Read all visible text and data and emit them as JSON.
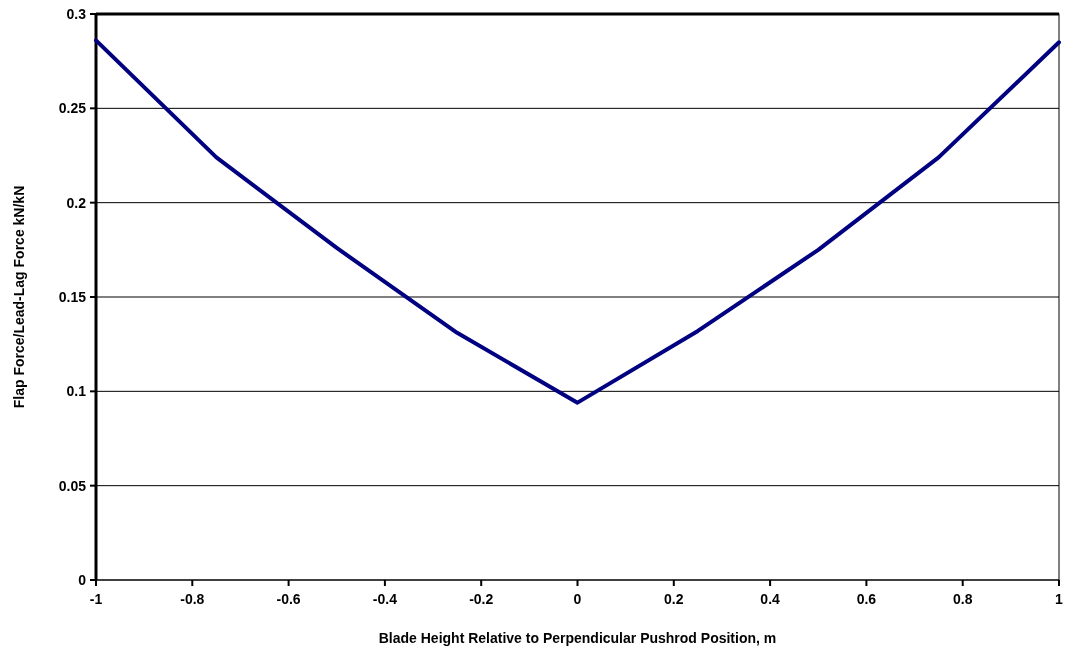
{
  "chart_data": {
    "type": "line",
    "xlabel": "Blade Height Relative to Perpendicular Pushrod Position, m",
    "ylabel": "Flap Force/Lead-Lag Force kN/kN",
    "x": [
      -1,
      -0.75,
      -0.5,
      -0.25,
      0,
      0.25,
      0.5,
      0.75,
      1
    ],
    "series": [
      {
        "color": "#000080",
        "values": [
          0.286,
          0.224,
          0.176,
          0.131,
          0.094,
          0.132,
          0.175,
          0.224,
          0.285
        ]
      }
    ],
    "xlim": [
      -1,
      1
    ],
    "xticks": [
      -1,
      -0.8,
      -0.6,
      -0.4,
      -0.2,
      0,
      0.2,
      0.4,
      0.6,
      0.8,
      1
    ],
    "ylim": [
      0,
      0.3
    ],
    "yticks": [
      0,
      0.05,
      0.1,
      0.15,
      0.2,
      0.25,
      0.3
    ],
    "grid": "y",
    "marker": "none",
    "line_style": "solid"
  }
}
